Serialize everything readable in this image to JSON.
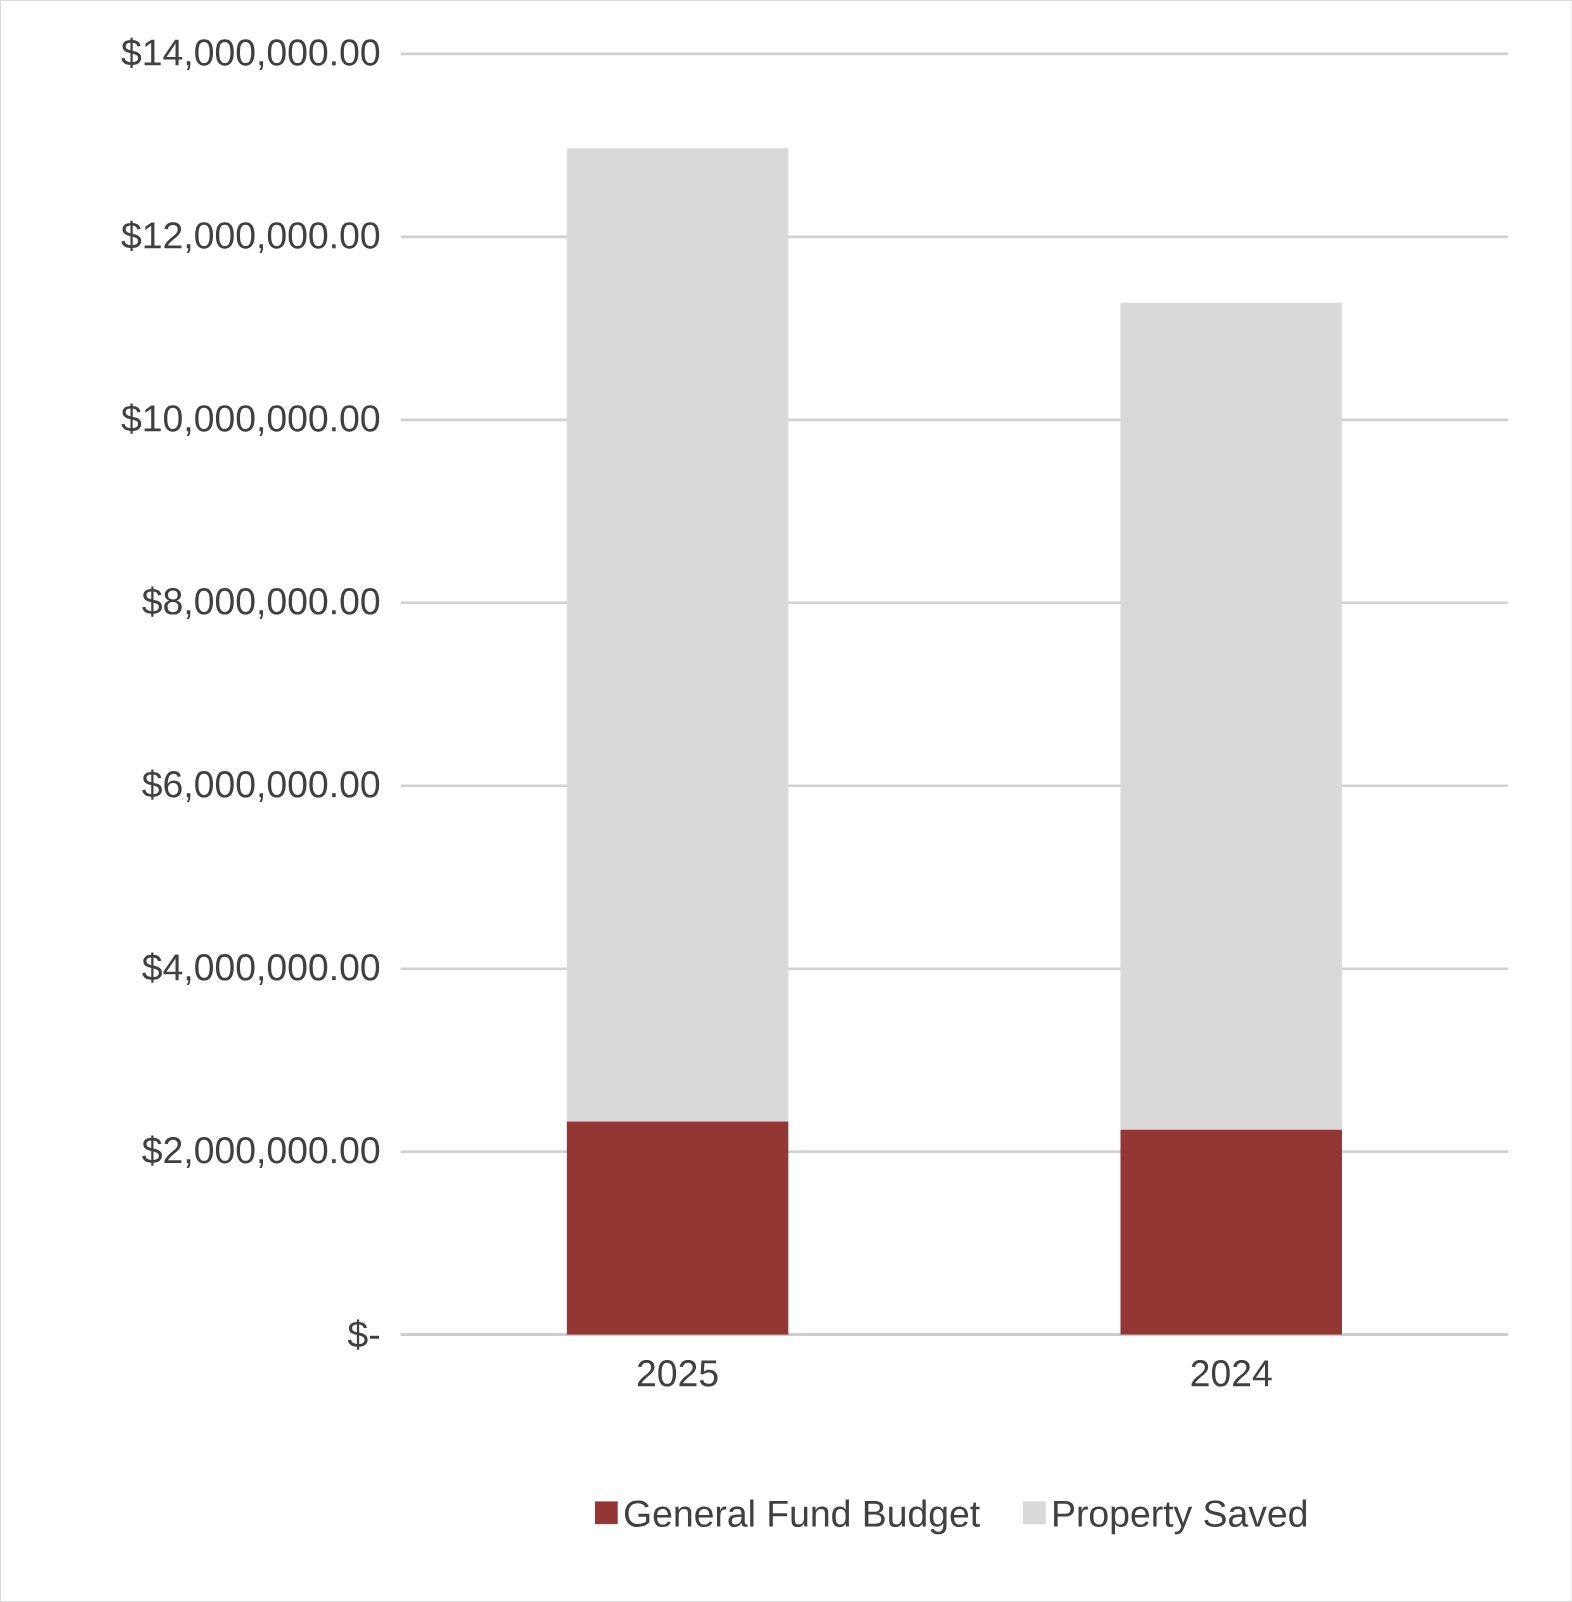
{
  "chart_data": {
    "type": "bar",
    "stacked": true,
    "categories": [
      "2025",
      "2024"
    ],
    "series": [
      {
        "name": "General Fund Budget",
        "color": "#943634",
        "values": [
          2330000,
          2240000
        ]
      },
      {
        "name": "Property Saved",
        "color": "#d9d9d9",
        "values": [
          10640000,
          9040000
        ]
      }
    ],
    "ylim": [
      0,
      14000000
    ],
    "yticks": [
      {
        "value": 0,
        "label": "$-"
      },
      {
        "value": 2000000,
        "label": "$2,000,000.00"
      },
      {
        "value": 4000000,
        "label": "$4,000,000.00"
      },
      {
        "value": 6000000,
        "label": "$6,000,000.00"
      },
      {
        "value": 8000000,
        "label": "$8,000,000.00"
      },
      {
        "value": 10000000,
        "label": "$10,000,000.00"
      },
      {
        "value": 12000000,
        "label": "$12,000,000.00"
      },
      {
        "value": 14000000,
        "label": "$14,000,000.00"
      }
    ],
    "grid": "y",
    "legend": "bottom"
  }
}
